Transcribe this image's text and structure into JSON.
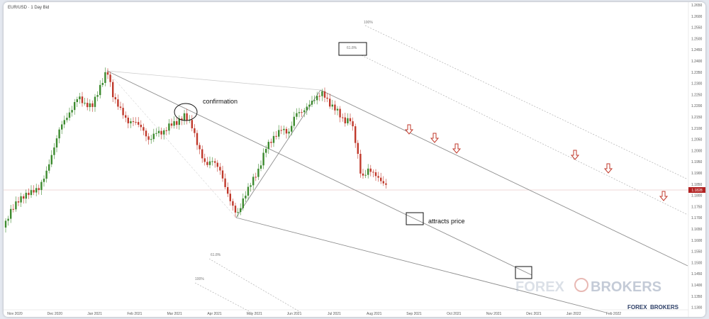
{
  "chart_data": {
    "type": "candlestick",
    "symbol": "EUR/USD · 1 Day Bid",
    "y_ticks": [
      "1.2650",
      "1.2600",
      "1.2550",
      "1.2500",
      "1.2450",
      "1.2400",
      "1.2350",
      "1.2300",
      "1.2250",
      "1.2200",
      "1.2150",
      "1.2100",
      "1.2050",
      "1.2000",
      "1.1950",
      "1.1900",
      "1.1850",
      "1.1800",
      "1.1750",
      "1.1700",
      "1.1650",
      "1.1600",
      "1.1550",
      "1.1500",
      "1.1450",
      "1.1400",
      "1.1350",
      "1.1300"
    ],
    "x_ticks": [
      "Nov 2020",
      "Dec 2020",
      "Jan 2021",
      "Feb 2021",
      "Mar 2021",
      "Apr 2021",
      "May 2021",
      "Jun 2021",
      "Jul 2021",
      "Aug 2021",
      "Sep 2021",
      "Oct 2021",
      "Nov 2021",
      "Dec 2021",
      "Jan 2022",
      "Feb 2022"
    ],
    "current_price": "1.1828",
    "annotations": [
      "confirmation",
      "attracts price"
    ],
    "fib_levels_top": [
      "100%",
      "61.8%"
    ],
    "fib_levels_bottom": [
      "61.8%",
      "100%"
    ],
    "up_color": "#3c8a2e",
    "down_color": "#c0392b"
  },
  "branding": {
    "logo_top": "FOREX",
    "logo_top_b": "BROKERS",
    "logo_bottom": "FOREX",
    "logo_bottom_b": "BROKERS"
  }
}
